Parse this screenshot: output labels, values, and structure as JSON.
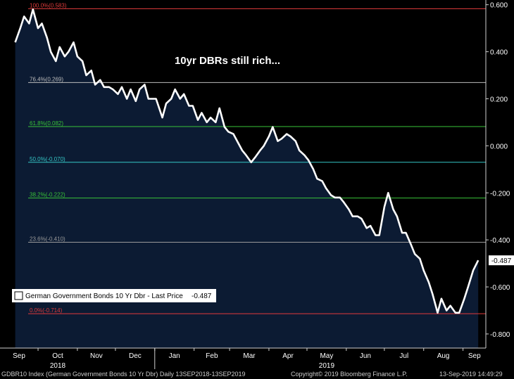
{
  "chart_data": {
    "type": "line",
    "title": "10yr DBRs still rich...",
    "ylim": [
      -0.86,
      0.62
    ],
    "y_ticks": [
      0.6,
      0.4,
      0.2,
      0.0,
      -0.2,
      -0.4,
      -0.6,
      -0.8
    ],
    "y_tick_labels": [
      "0.600",
      "0.400",
      "0.200",
      "0.000",
      "-0.200",
      "-0.400",
      "-0.600",
      "-0.800"
    ],
    "x_month_labels": [
      "Sep",
      "Oct",
      "Nov",
      "Dec",
      "Jan",
      "Feb",
      "Mar",
      "Apr",
      "May",
      "Jun",
      "Jul",
      "Aug",
      "Sep"
    ],
    "x_year_labels": [
      "2018",
      "2019"
    ],
    "last_value_label": "-0.487",
    "fib_levels": [
      {
        "label": "100.0%(0.583)",
        "value": 0.583,
        "color": "#e23b3b"
      },
      {
        "label": "76.4%(0.269)",
        "value": 0.269,
        "color": "#bdbdbd"
      },
      {
        "label": "61.8%(0.082)",
        "value": 0.082,
        "color": "#38c338"
      },
      {
        "label": "50.0%(-0.070)",
        "value": -0.07,
        "color": "#35c6c6"
      },
      {
        "label": "38.2%(-0.222)",
        "value": -0.222,
        "color": "#38c338"
      },
      {
        "label": "23.6%(-0.410)",
        "value": -0.41,
        "color": "#9a9a9a"
      },
      {
        "label": "0.0%(-0.714)",
        "value": -0.714,
        "color": "#e23b3b"
      }
    ],
    "legend_entry": "German Government Bonds 10 Yr Dbr - Last Price",
    "legend_value": "-0.487",
    "series": [
      {
        "x": [
          "2018-09-13",
          "2018-09-17",
          "2018-09-20",
          "2018-09-24",
          "2018-09-27",
          "2018-10-01",
          "2018-10-04",
          "2018-10-08",
          "2018-10-11",
          "2018-10-15",
          "2018-10-18",
          "2018-10-22",
          "2018-10-25",
          "2018-10-29",
          "2018-11-01",
          "2018-11-05",
          "2018-11-08",
          "2018-11-12",
          "2018-11-15",
          "2018-11-19",
          "2018-11-22",
          "2018-11-26",
          "2018-11-29",
          "2018-12-03",
          "2018-12-06",
          "2018-12-10",
          "2018-12-13",
          "2018-12-17",
          "2018-12-20",
          "2018-12-24",
          "2018-12-27",
          "2019-01-02",
          "2019-01-07",
          "2019-01-10",
          "2019-01-14",
          "2019-01-17",
          "2019-01-21",
          "2019-01-24",
          "2019-01-28",
          "2019-01-31",
          "2019-02-04",
          "2019-02-07",
          "2019-02-11",
          "2019-02-14",
          "2019-02-18",
          "2019-02-21",
          "2019-02-25",
          "2019-02-28",
          "2019-03-04",
          "2019-03-07",
          "2019-03-11",
          "2019-03-14",
          "2019-03-18",
          "2019-03-21",
          "2019-03-25",
          "2019-03-28",
          "2019-04-01",
          "2019-04-04",
          "2019-04-08",
          "2019-04-11",
          "2019-04-15",
          "2019-04-18",
          "2019-04-22",
          "2019-04-25",
          "2019-04-29",
          "2019-05-02",
          "2019-05-06",
          "2019-05-09",
          "2019-05-13",
          "2019-05-16",
          "2019-05-20",
          "2019-05-23",
          "2019-05-27",
          "2019-05-30",
          "2019-06-03",
          "2019-06-06",
          "2019-06-10",
          "2019-06-13",
          "2019-06-17",
          "2019-06-20",
          "2019-06-24",
          "2019-06-27",
          "2019-07-01",
          "2019-07-04",
          "2019-07-08",
          "2019-07-11",
          "2019-07-15",
          "2019-07-18",
          "2019-07-22",
          "2019-07-25",
          "2019-07-29",
          "2019-08-01",
          "2019-08-05",
          "2019-08-08",
          "2019-08-12",
          "2019-08-15",
          "2019-08-19",
          "2019-08-22",
          "2019-08-26",
          "2019-08-29",
          "2019-09-02",
          "2019-09-05",
          "2019-09-09",
          "2019-09-13"
        ],
        "values": [
          0.44,
          0.5,
          0.55,
          0.52,
          0.58,
          0.5,
          0.52,
          0.46,
          0.4,
          0.36,
          0.42,
          0.38,
          0.4,
          0.44,
          0.38,
          0.36,
          0.3,
          0.32,
          0.26,
          0.28,
          0.25,
          0.25,
          0.24,
          0.22,
          0.25,
          0.2,
          0.24,
          0.19,
          0.24,
          0.26,
          0.2,
          0.2,
          0.12,
          0.18,
          0.2,
          0.24,
          0.2,
          0.22,
          0.17,
          0.17,
          0.11,
          0.14,
          0.1,
          0.12,
          0.1,
          0.16,
          0.08,
          0.06,
          0.05,
          0.02,
          -0.02,
          -0.04,
          -0.07,
          -0.05,
          -0.02,
          0.0,
          0.04,
          0.08,
          0.02,
          0.03,
          0.05,
          0.04,
          0.02,
          -0.02,
          -0.04,
          -0.06,
          -0.1,
          -0.14,
          -0.15,
          -0.18,
          -0.21,
          -0.22,
          -0.22,
          -0.24,
          -0.27,
          -0.3,
          -0.3,
          -0.31,
          -0.35,
          -0.34,
          -0.38,
          -0.38,
          -0.26,
          -0.2,
          -0.27,
          -0.3,
          -0.37,
          -0.37,
          -0.42,
          -0.46,
          -0.48,
          -0.53,
          -0.58,
          -0.63,
          -0.71,
          -0.65,
          -0.7,
          -0.68,
          -0.71,
          -0.71,
          -0.65,
          -0.6,
          -0.53,
          -0.487
        ]
      }
    ]
  },
  "footer": {
    "left": "GDBR10 Index (German Government Bonds 10 Yr Dbr)  Daily 13SEP2018-13SEP2019",
    "middle": "Copyright© 2019 Bloomberg Finance L.P.",
    "right": "13-Sep-2019 14:49:29"
  },
  "colors": {
    "background": "#000000",
    "fill": "#0c1b33",
    "line": "#ffffff"
  }
}
